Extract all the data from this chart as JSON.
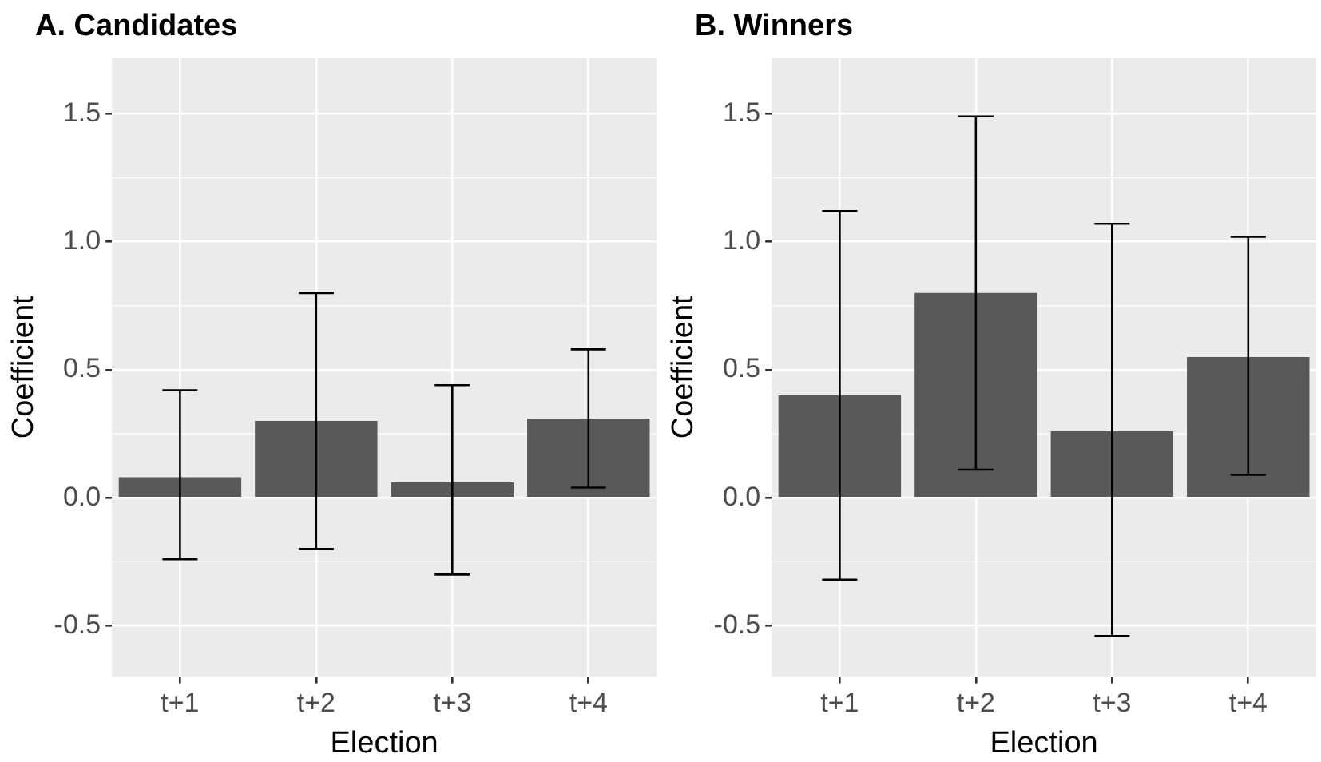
{
  "chart_data": [
    {
      "type": "bar",
      "title": "A. Candidates",
      "xlabel": "Election",
      "ylabel": "Coefficient",
      "categories": [
        "t+1",
        "t+2",
        "t+3",
        "t+4"
      ],
      "values": [
        0.08,
        0.3,
        0.06,
        0.31
      ],
      "color": "#595959",
      "errors": [
        [
          -0.24,
          0.42
        ],
        [
          -0.2,
          0.8
        ],
        [
          -0.3,
          0.44
        ],
        [
          0.04,
          0.58
        ]
      ],
      "ylim": [
        -0.7,
        1.72
      ],
      "yticks": [
        {
          "value": -0.5,
          "label": "-0.5"
        },
        {
          "value": 0,
          "label": "0.0"
        },
        {
          "value": 0.5,
          "label": "0.5"
        },
        {
          "value": 1,
          "label": "1.0"
        },
        {
          "value": 1.5,
          "label": "1.5"
        }
      ],
      "grid": true
    },
    {
      "type": "bar",
      "title": "B. Winners",
      "xlabel": "Election",
      "ylabel": "Coefficient",
      "categories": [
        "t+1",
        "t+2",
        "t+3",
        "t+4"
      ],
      "values": [
        0.4,
        0.8,
        0.26,
        0.55
      ],
      "color": "#595959",
      "errors": [
        [
          -0.32,
          1.12
        ],
        [
          0.11,
          1.49
        ],
        [
          -0.54,
          1.07
        ],
        [
          0.09,
          1.02
        ]
      ],
      "ylim": [
        -0.7,
        1.72
      ],
      "yticks": [
        {
          "value": -0.5,
          "label": "-0.5"
        },
        {
          "value": 0,
          "label": "0.0"
        },
        {
          "value": 0.5,
          "label": "0.5"
        },
        {
          "value": 1,
          "label": "1.0"
        },
        {
          "value": 1.5,
          "label": "1.5"
        }
      ],
      "grid": true
    }
  ]
}
